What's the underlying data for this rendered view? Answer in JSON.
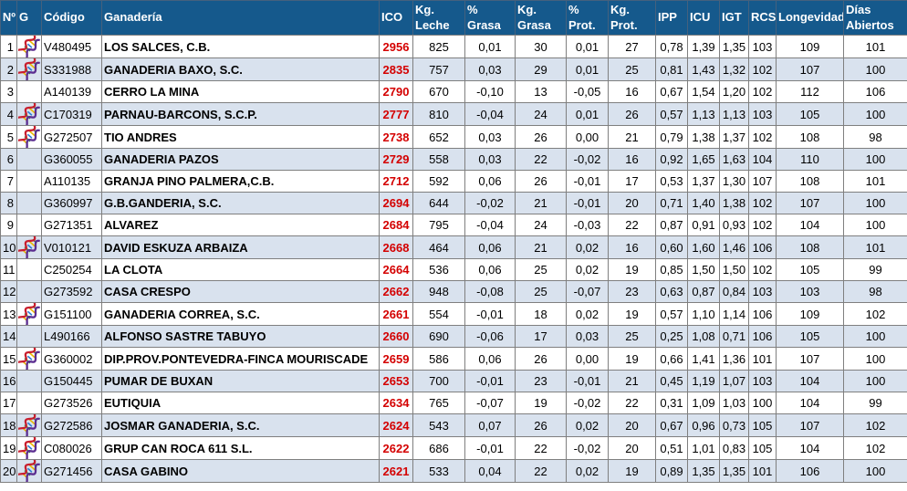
{
  "colors": {
    "header_bg": "#15598C",
    "header_text": "#FFFFFF",
    "stripe_bg": "#D9E2EE",
    "row_bg": "#FFFFFF",
    "border_color": "#7F7F7F",
    "ico_red": "#D40000",
    "text_color": "#000000"
  },
  "icons": {
    "g_column_icon": "dna-icon"
  },
  "table": {
    "columns": [
      {
        "key": "num",
        "label": "Nº"
      },
      {
        "key": "g",
        "label": "G"
      },
      {
        "key": "codigo",
        "label": "Código"
      },
      {
        "key": "ganaderia",
        "label": "Ganadería"
      },
      {
        "key": "ico",
        "label": "ICO"
      },
      {
        "key": "kg_leche",
        "label": "Kg. Leche"
      },
      {
        "key": "pct_grasa",
        "label": "% Grasa"
      },
      {
        "key": "kg_grasa",
        "label": "Kg. Grasa"
      },
      {
        "key": "pct_prot",
        "label": "% Prot."
      },
      {
        "key": "kg_prot",
        "label": "Kg. Prot."
      },
      {
        "key": "ipp",
        "label": "IPP"
      },
      {
        "key": "icu",
        "label": "ICU"
      },
      {
        "key": "igt",
        "label": "IGT"
      },
      {
        "key": "rcs",
        "label": "RCS"
      },
      {
        "key": "longevidad",
        "label": "Longevidad"
      },
      {
        "key": "dias_abiertos",
        "label": "Días Abiertos"
      }
    ],
    "rows": [
      {
        "num": "1",
        "has_dna_icon": true,
        "codigo": "V480495",
        "ganaderia": "LOS SALCES, C.B.",
        "ico": "2956",
        "kg_leche": "825",
        "pct_grasa": "0,01",
        "kg_grasa": "30",
        "pct_prot": "0,01",
        "kg_prot": "27",
        "ipp": "0,78",
        "icu": "1,39",
        "igt": "1,35",
        "rcs": "103",
        "longevidad": "109",
        "dias_abiertos": "101"
      },
      {
        "num": "2",
        "has_dna_icon": true,
        "codigo": "S331988",
        "ganaderia": "GANADERIA BAXO, S.C.",
        "ico": "2835",
        "kg_leche": "757",
        "pct_grasa": "0,03",
        "kg_grasa": "29",
        "pct_prot": "0,01",
        "kg_prot": "25",
        "ipp": "0,81",
        "icu": "1,43",
        "igt": "1,32",
        "rcs": "102",
        "longevidad": "107",
        "dias_abiertos": "100"
      },
      {
        "num": "3",
        "has_dna_icon": false,
        "codigo": "A140139",
        "ganaderia": "CERRO LA MINA",
        "ico": "2790",
        "kg_leche": "670",
        "pct_grasa": "-0,10",
        "kg_grasa": "13",
        "pct_prot": "-0,05",
        "kg_prot": "16",
        "ipp": "0,67",
        "icu": "1,54",
        "igt": "1,20",
        "rcs": "102",
        "longevidad": "112",
        "dias_abiertos": "106"
      },
      {
        "num": "4",
        "has_dna_icon": true,
        "codigo": "C170319",
        "ganaderia": "PARNAU-BARCONS, S.C.P.",
        "ico": "2777",
        "kg_leche": "810",
        "pct_grasa": "-0,04",
        "kg_grasa": "24",
        "pct_prot": "0,01",
        "kg_prot": "26",
        "ipp": "0,57",
        "icu": "1,13",
        "igt": "1,13",
        "rcs": "103",
        "longevidad": "105",
        "dias_abiertos": "100"
      },
      {
        "num": "5",
        "has_dna_icon": true,
        "codigo": "G272507",
        "ganaderia": "TIO ANDRES",
        "ico": "2738",
        "kg_leche": "652",
        "pct_grasa": "0,03",
        "kg_grasa": "26",
        "pct_prot": "0,00",
        "kg_prot": "21",
        "ipp": "0,79",
        "icu": "1,38",
        "igt": "1,37",
        "rcs": "102",
        "longevidad": "108",
        "dias_abiertos": "98"
      },
      {
        "num": "6",
        "has_dna_icon": false,
        "codigo": "G360055",
        "ganaderia": "GANADERIA PAZOS",
        "ico": "2729",
        "kg_leche": "558",
        "pct_grasa": "0,03",
        "kg_grasa": "22",
        "pct_prot": "-0,02",
        "kg_prot": "16",
        "ipp": "0,92",
        "icu": "1,65",
        "igt": "1,63",
        "rcs": "104",
        "longevidad": "110",
        "dias_abiertos": "100"
      },
      {
        "num": "7",
        "has_dna_icon": false,
        "codigo": "A110135",
        "ganaderia": "GRANJA PINO PALMERA,C.B.",
        "ico": "2712",
        "kg_leche": "592",
        "pct_grasa": "0,06",
        "kg_grasa": "26",
        "pct_prot": "-0,01",
        "kg_prot": "17",
        "ipp": "0,53",
        "icu": "1,37",
        "igt": "1,30",
        "rcs": "107",
        "longevidad": "108",
        "dias_abiertos": "101"
      },
      {
        "num": "8",
        "has_dna_icon": false,
        "codigo": "G360997",
        "ganaderia": "G.B.GANDERIA, S.C.",
        "ico": "2694",
        "kg_leche": "644",
        "pct_grasa": "-0,02",
        "kg_grasa": "21",
        "pct_prot": "-0,01",
        "kg_prot": "20",
        "ipp": "0,71",
        "icu": "1,40",
        "igt": "1,38",
        "rcs": "102",
        "longevidad": "107",
        "dias_abiertos": "100"
      },
      {
        "num": "9",
        "has_dna_icon": false,
        "codigo": "G271351",
        "ganaderia": "ALVAREZ",
        "ico": "2684",
        "kg_leche": "795",
        "pct_grasa": "-0,04",
        "kg_grasa": "24",
        "pct_prot": "-0,03",
        "kg_prot": "22",
        "ipp": "0,87",
        "icu": "0,91",
        "igt": "0,93",
        "rcs": "102",
        "longevidad": "104",
        "dias_abiertos": "100"
      },
      {
        "num": "10",
        "has_dna_icon": true,
        "codigo": "V010121",
        "ganaderia": "DAVID ESKUZA ARBAIZA",
        "ico": "2668",
        "kg_leche": "464",
        "pct_grasa": "0,06",
        "kg_grasa": "21",
        "pct_prot": "0,02",
        "kg_prot": "16",
        "ipp": "0,60",
        "icu": "1,60",
        "igt": "1,46",
        "rcs": "106",
        "longevidad": "108",
        "dias_abiertos": "101"
      },
      {
        "num": "11",
        "has_dna_icon": false,
        "codigo": "C250254",
        "ganaderia": "LA CLOTA",
        "ico": "2664",
        "kg_leche": "536",
        "pct_grasa": "0,06",
        "kg_grasa": "25",
        "pct_prot": "0,02",
        "kg_prot": "19",
        "ipp": "0,85",
        "icu": "1,50",
        "igt": "1,50",
        "rcs": "102",
        "longevidad": "105",
        "dias_abiertos": "99"
      },
      {
        "num": "12",
        "has_dna_icon": false,
        "codigo": "G273592",
        "ganaderia": "CASA CRESPO",
        "ico": "2662",
        "kg_leche": "948",
        "pct_grasa": "-0,08",
        "kg_grasa": "25",
        "pct_prot": "-0,07",
        "kg_prot": "23",
        "ipp": "0,63",
        "icu": "0,87",
        "igt": "0,84",
        "rcs": "103",
        "longevidad": "103",
        "dias_abiertos": "98"
      },
      {
        "num": "13",
        "has_dna_icon": true,
        "codigo": "G151100",
        "ganaderia": "GANADERIA CORREA, S.C.",
        "ico": "2661",
        "kg_leche": "554",
        "pct_grasa": "-0,01",
        "kg_grasa": "18",
        "pct_prot": "0,02",
        "kg_prot": "19",
        "ipp": "0,57",
        "icu": "1,10",
        "igt": "1,14",
        "rcs": "106",
        "longevidad": "109",
        "dias_abiertos": "102"
      },
      {
        "num": "14",
        "has_dna_icon": false,
        "codigo": "L490166",
        "ganaderia": "ALFONSO SASTRE TABUYO",
        "ico": "2660",
        "kg_leche": "690",
        "pct_grasa": "-0,06",
        "kg_grasa": "17",
        "pct_prot": "0,03",
        "kg_prot": "25",
        "ipp": "0,25",
        "icu": "1,08",
        "igt": "0,71",
        "rcs": "106",
        "longevidad": "105",
        "dias_abiertos": "100"
      },
      {
        "num": "15",
        "has_dna_icon": true,
        "codigo": "G360002",
        "ganaderia": "DIP.PROV.PONTEVEDRA-FINCA MOURISCADE",
        "ico": "2659",
        "kg_leche": "586",
        "pct_grasa": "0,06",
        "kg_grasa": "26",
        "pct_prot": "0,00",
        "kg_prot": "19",
        "ipp": "0,66",
        "icu": "1,41",
        "igt": "1,36",
        "rcs": "101",
        "longevidad": "107",
        "dias_abiertos": "100"
      },
      {
        "num": "16",
        "has_dna_icon": false,
        "codigo": "G150445",
        "ganaderia": "PUMAR DE BUXAN",
        "ico": "2653",
        "kg_leche": "700",
        "pct_grasa": "-0,01",
        "kg_grasa": "23",
        "pct_prot": "-0,01",
        "kg_prot": "21",
        "ipp": "0,45",
        "icu": "1,19",
        "igt": "1,07",
        "rcs": "103",
        "longevidad": "104",
        "dias_abiertos": "100"
      },
      {
        "num": "17",
        "has_dna_icon": false,
        "codigo": "G273526",
        "ganaderia": "EUTIQUIA",
        "ico": "2634",
        "kg_leche": "765",
        "pct_grasa": "-0,07",
        "kg_grasa": "19",
        "pct_prot": "-0,02",
        "kg_prot": "22",
        "ipp": "0,31",
        "icu": "1,09",
        "igt": "1,03",
        "rcs": "100",
        "longevidad": "104",
        "dias_abiertos": "99"
      },
      {
        "num": "18",
        "has_dna_icon": true,
        "codigo": "G272586",
        "ganaderia": "JOSMAR GANADERIA, S.C.",
        "ico": "2624",
        "kg_leche": "543",
        "pct_grasa": "0,07",
        "kg_grasa": "26",
        "pct_prot": "0,02",
        "kg_prot": "20",
        "ipp": "0,67",
        "icu": "0,96",
        "igt": "0,73",
        "rcs": "105",
        "longevidad": "107",
        "dias_abiertos": "102"
      },
      {
        "num": "19",
        "has_dna_icon": true,
        "codigo": "C080026",
        "ganaderia": "GRUP CAN ROCA 611 S.L.",
        "ico": "2622",
        "kg_leche": "686",
        "pct_grasa": "-0,01",
        "kg_grasa": "22",
        "pct_prot": "-0,02",
        "kg_prot": "20",
        "ipp": "0,51",
        "icu": "1,01",
        "igt": "0,83",
        "rcs": "105",
        "longevidad": "104",
        "dias_abiertos": "102"
      },
      {
        "num": "20",
        "has_dna_icon": true,
        "codigo": "G271456",
        "ganaderia": "CASA GABINO",
        "ico": "2621",
        "kg_leche": "533",
        "pct_grasa": "0,04",
        "kg_grasa": "22",
        "pct_prot": "0,02",
        "kg_prot": "19",
        "ipp": "0,89",
        "icu": "1,35",
        "igt": "1,35",
        "rcs": "101",
        "longevidad": "106",
        "dias_abiertos": "100"
      }
    ]
  }
}
